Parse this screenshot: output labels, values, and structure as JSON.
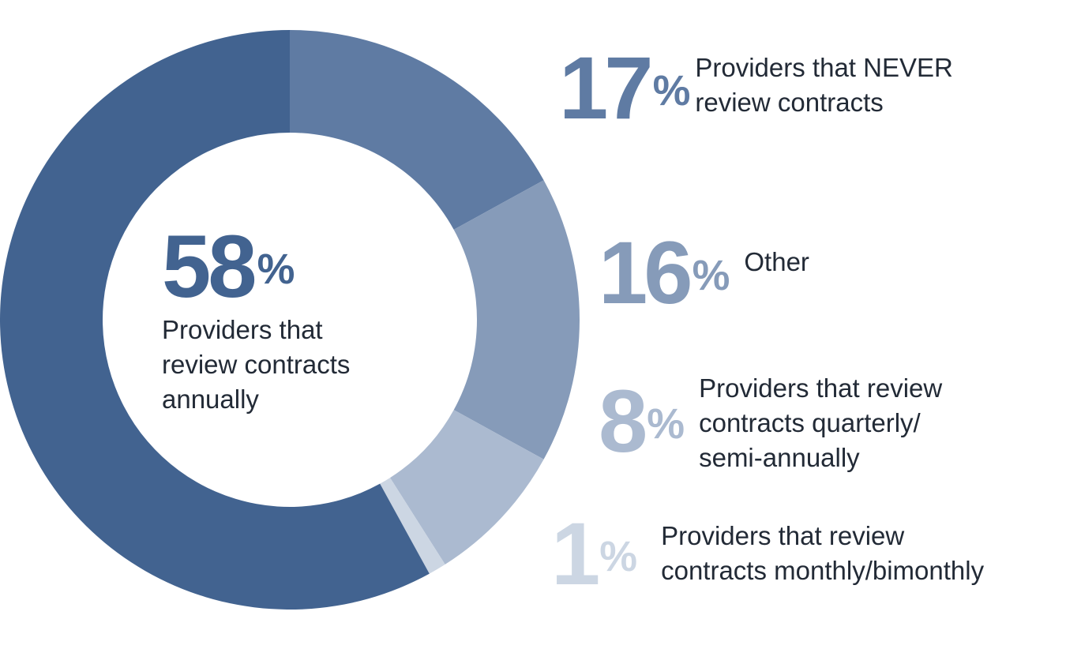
{
  "colors": {
    "annually": "#426390",
    "never": "#5f7ba3",
    "other": "#869bb9",
    "quarterly": "#abbad0",
    "monthly": "#ccd6e3",
    "text": "#222a36"
  },
  "chart_data": {
    "type": "pie",
    "donut": true,
    "slices": [
      {
        "key": "never",
        "value": 17,
        "pct_label": "17",
        "label": "Providers that NEVER\nreview contracts"
      },
      {
        "key": "other",
        "value": 16,
        "pct_label": "16",
        "label": "Other"
      },
      {
        "key": "quarterly",
        "value": 8,
        "pct_label": "8",
        "label": "Providers that review\ncontracts quarterly/\nsemi-annually"
      },
      {
        "key": "monthly",
        "value": 1,
        "pct_label": "1",
        "label": "Providers that review\ncontracts monthly/bimonthly"
      },
      {
        "key": "annually",
        "value": 58,
        "pct_label": "58",
        "label": "Providers that\nreview contracts\nannually"
      }
    ],
    "percent_sign": "%"
  }
}
